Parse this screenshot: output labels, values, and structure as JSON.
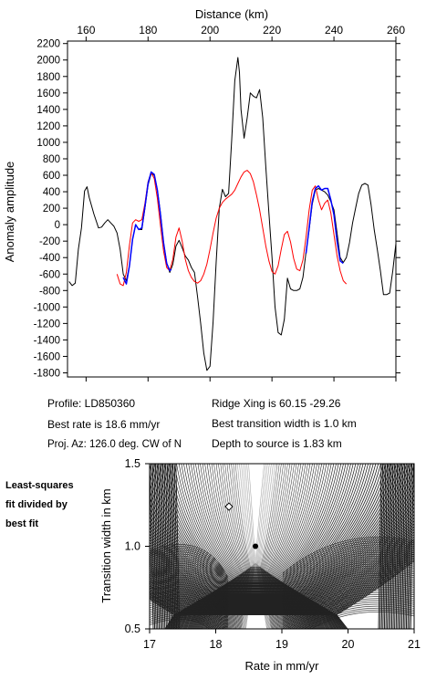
{
  "chart_data": [
    {
      "type": "line",
      "xlabel": "Distance (km)",
      "ylabel": "Anomaly amplitude",
      "xlim": [
        154,
        260
      ],
      "ylim": [
        -1850,
        2230
      ],
      "x_ticks": [
        160,
        180,
        200,
        220,
        240,
        260
      ],
      "y_ticks": [
        -1800,
        -1600,
        -1400,
        -1200,
        -1000,
        -800,
        -600,
        -400,
        -200,
        0,
        200,
        400,
        600,
        800,
        1000,
        1200,
        1400,
        1600,
        1800,
        2000,
        2200
      ],
      "series": [
        {
          "color": "#000000",
          "points": [
            [
              154.5,
              -690
            ],
            [
              155.5,
              -740
            ],
            [
              156.5,
              -710
            ],
            [
              157.5,
              -300
            ],
            [
              158.5,
              -40
            ],
            [
              159.5,
              410
            ],
            [
              160.3,
              460
            ],
            [
              161,
              330
            ],
            [
              162.5,
              130
            ],
            [
              164,
              -40
            ],
            [
              165,
              -30
            ],
            [
              166,
              20
            ],
            [
              167,
              60
            ],
            [
              168,
              20
            ],
            [
              169,
              -20
            ],
            [
              170,
              -100
            ],
            [
              171,
              -300
            ],
            [
              172,
              -600
            ],
            [
              173,
              -680
            ],
            [
              174,
              -500
            ],
            [
              175,
              -180
            ],
            [
              176,
              0
            ],
            [
              177,
              -60
            ],
            [
              178,
              -60
            ],
            [
              179,
              200
            ],
            [
              180,
              480
            ],
            [
              181,
              620
            ],
            [
              182,
              600
            ],
            [
              183,
              420
            ],
            [
              184,
              140
            ],
            [
              185,
              -220
            ],
            [
              186,
              -460
            ],
            [
              187,
              -580
            ],
            [
              188,
              -480
            ],
            [
              189,
              -260
            ],
            [
              190,
              -190
            ],
            [
              191,
              -280
            ],
            [
              192,
              -380
            ],
            [
              193,
              -430
            ],
            [
              194,
              -520
            ],
            [
              195,
              -580
            ],
            [
              196,
              -880
            ],
            [
              197,
              -1200
            ],
            [
              198,
              -1560
            ],
            [
              199,
              -1770
            ],
            [
              200,
              -1720
            ],
            [
              201,
              -1180
            ],
            [
              202,
              -450
            ],
            [
              203,
              200
            ],
            [
              204,
              430
            ],
            [
              205,
              340
            ],
            [
              206,
              380
            ],
            [
              207,
              1030
            ],
            [
              208,
              1750
            ],
            [
              209,
              2030
            ],
            [
              209.5,
              1850
            ],
            [
              210,
              1400
            ],
            [
              211,
              1050
            ],
            [
              212,
              1300
            ],
            [
              213,
              1600
            ],
            [
              214,
              1560
            ],
            [
              215,
              1540
            ],
            [
              216,
              1640
            ],
            [
              217,
              1300
            ],
            [
              218,
              700
            ],
            [
              219,
              140
            ],
            [
              220,
              -400
            ],
            [
              221,
              -1000
            ],
            [
              222,
              -1310
            ],
            [
              223,
              -1340
            ],
            [
              224,
              -1150
            ],
            [
              225,
              -650
            ],
            [
              226,
              -780
            ],
            [
              227,
              -800
            ],
            [
              228,
              -800
            ],
            [
              229,
              -780
            ],
            [
              230,
              -640
            ],
            [
              231,
              -330
            ],
            [
              232,
              -60
            ],
            [
              233,
              250
            ],
            [
              234,
              420
            ],
            [
              235,
              440
            ],
            [
              236,
              420
            ],
            [
              237,
              400
            ],
            [
              238,
              360
            ],
            [
              239,
              280
            ],
            [
              240,
              180
            ],
            [
              241,
              -100
            ],
            [
              242,
              -400
            ],
            [
              243,
              -460
            ],
            [
              244,
              -400
            ],
            [
              245,
              -220
            ],
            [
              246,
              20
            ],
            [
              247,
              200
            ],
            [
              248,
              380
            ],
            [
              249,
              480
            ],
            [
              250,
              500
            ],
            [
              251,
              480
            ],
            [
              252,
              240
            ],
            [
              253,
              -60
            ],
            [
              254,
              -300
            ],
            [
              255,
              -560
            ],
            [
              256,
              -850
            ],
            [
              257,
              -850
            ],
            [
              258,
              -830
            ],
            [
              259,
              -560
            ],
            [
              260,
              -230
            ]
          ]
        },
        {
          "color": "#ff0000",
          "points": [
            [
              170,
              -600
            ],
            [
              171,
              -720
            ],
            [
              172,
              -740
            ],
            [
              173,
              -580
            ],
            [
              174,
              -250
            ],
            [
              175,
              20
            ],
            [
              176,
              60
            ],
            [
              177,
              40
            ],
            [
              178,
              60
            ],
            [
              179,
              260
            ],
            [
              180,
              520
            ],
            [
              181,
              630
            ],
            [
              182,
              560
            ],
            [
              183,
              320
            ],
            [
              184,
              -10
            ],
            [
              185,
              -320
            ],
            [
              186,
              -520
            ],
            [
              187,
              -560
            ],
            [
              188,
              -420
            ],
            [
              189,
              -150
            ],
            [
              190,
              -40
            ],
            [
              191,
              -200
            ],
            [
              192,
              -420
            ],
            [
              193,
              -560
            ],
            [
              194,
              -640
            ],
            [
              195,
              -690
            ],
            [
              196,
              -710
            ],
            [
              197,
              -680
            ],
            [
              198,
              -600
            ],
            [
              199,
              -480
            ],
            [
              200,
              -300
            ],
            [
              201,
              -100
            ],
            [
              202,
              80
            ],
            [
              203,
              200
            ],
            [
              204,
              270
            ],
            [
              205,
              310
            ],
            [
              206,
              340
            ],
            [
              207,
              370
            ],
            [
              208,
              420
            ],
            [
              209,
              500
            ],
            [
              210,
              580
            ],
            [
              211,
              640
            ],
            [
              212,
              660
            ],
            [
              213,
              620
            ],
            [
              214,
              520
            ],
            [
              215,
              360
            ],
            [
              216,
              180
            ],
            [
              217,
              -40
            ],
            [
              218,
              -260
            ],
            [
              219,
              -440
            ],
            [
              220,
              -570
            ],
            [
              221,
              -600
            ],
            [
              222,
              -500
            ],
            [
              223,
              -300
            ],
            [
              224,
              -120
            ],
            [
              225,
              -80
            ],
            [
              226,
              -210
            ],
            [
              227,
              -410
            ],
            [
              228,
              -540
            ],
            [
              229,
              -560
            ],
            [
              230,
              -430
            ],
            [
              231,
              -150
            ],
            [
              232,
              180
            ],
            [
              233,
              420
            ],
            [
              234,
              470
            ],
            [
              235,
              300
            ],
            [
              236,
              180
            ],
            [
              237,
              260
            ],
            [
              238,
              300
            ],
            [
              239,
              140
            ],
            [
              240,
              -120
            ],
            [
              241,
              -380
            ],
            [
              242,
              -560
            ],
            [
              243,
              -680
            ],
            [
              244,
              -720
            ]
          ]
        },
        {
          "color": "#0000ff",
          "points": [
            [
              172,
              -640
            ],
            [
              173,
              -720
            ],
            [
              174,
              -500
            ],
            [
              175,
              -180
            ],
            [
              176,
              0
            ],
            [
              177,
              -60
            ],
            [
              178,
              -40
            ],
            [
              179,
              220
            ],
            [
              180,
              500
            ],
            [
              181,
              640
            ],
            [
              182,
              610
            ],
            [
              183,
              420
            ],
            [
              184,
              120
            ],
            [
              185,
              -220
            ],
            [
              186,
              -470
            ],
            [
              187,
              -560
            ],
            [
              187.5,
              -540
            ],
            [
              231,
              -350
            ],
            [
              232,
              -40
            ],
            [
              233,
              280
            ],
            [
              234,
              440
            ],
            [
              235,
              470
            ],
            [
              236,
              420
            ],
            [
              237,
              440
            ],
            [
              238,
              440
            ],
            [
              239,
              300
            ],
            [
              240,
              120
            ],
            [
              241,
              -200
            ],
            [
              242,
              -440
            ],
            [
              243,
              -470
            ]
          ]
        }
      ]
    },
    {
      "type": "heatmap",
      "xlabel": "Rate in mm/yr",
      "ylabel": "Transition width in km",
      "xlim": [
        17,
        21
      ],
      "ylim": [
        0.5,
        1.5
      ],
      "x_ticks": [
        17,
        18,
        19,
        20,
        21
      ],
      "y_ticks": [
        0.5,
        1.0,
        1.5
      ],
      "best_fit_point": [
        18.6,
        1.0
      ],
      "marker_diamond": [
        18.2,
        1.24
      ]
    }
  ],
  "info": {
    "profile": "Profile: LD850360",
    "rate": "Best rate is 18.6 mm/yr",
    "proj": "Proj. Az: 126.0 deg. CW of N",
    "ridge": "Ridge Xing is 60.15 -29.26",
    "transition": "Best transition width is 1.0 km",
    "depth": "Depth to source is   1.83 km"
  },
  "side_label": [
    "Least-squares",
    "fit divided by",
    "best fit"
  ]
}
